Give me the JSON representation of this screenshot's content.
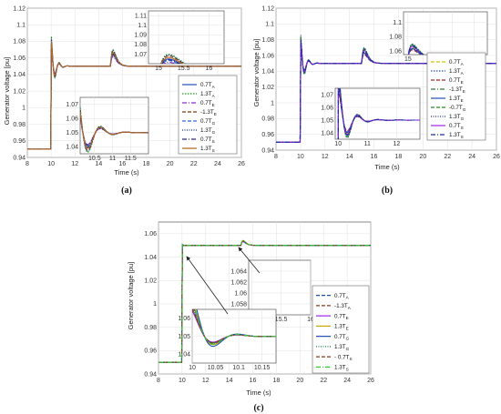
{
  "chart_data": [
    {
      "id": "a",
      "type": "line",
      "caption": "(a)",
      "xlabel": "Time (s)",
      "ylabel": "Generator voltage [pu]",
      "xlim": [
        8,
        26
      ],
      "ylim": [
        0.94,
        1.12
      ],
      "xticks": [
        8,
        10,
        12,
        14,
        16,
        18,
        20,
        22,
        24,
        26
      ],
      "yticks": [
        0.94,
        0.96,
        0.98,
        1.0,
        1.02,
        1.04,
        1.06,
        1.08,
        1.1,
        1.12
      ],
      "grid": true,
      "legend_placement": "right",
      "series": [
        {
          "name": "0.7T",
          "sub": "A",
          "color": "#1f4fb5",
          "dash": "",
          "amp": 0.01,
          "amp2": -0.002
        },
        {
          "name": "1.3T",
          "sub": "A",
          "color": "#1b9e1b",
          "dash": "1.5,1.5",
          "amp": 0.02,
          "amp2": 0.004
        },
        {
          "name": "0.7T",
          "sub": "E",
          "color": "#8a2be2",
          "dash": "5,2,1,2",
          "amp": 0.004,
          "amp2": -0.006
        },
        {
          "name": "-1.3T",
          "sub": "E",
          "color": "#7a3b12",
          "dash": "4,2",
          "amp": 0.016,
          "amp2": 0.002
        },
        {
          "name": "0.7T",
          "sub": "G",
          "color": "#2a6fd0",
          "dash": "4,2",
          "amp": 0.008,
          "amp2": -0.004
        },
        {
          "name": "1.3T",
          "sub": "G",
          "color": "#1a2e9a",
          "dash": "1,1.5",
          "amp": 0.018,
          "amp2": 0.003
        },
        {
          "name": "0.7T",
          "sub": "S",
          "color": "#2a2a7a",
          "dash": "5,2,1,2",
          "amp": 0.006,
          "amp2": -0.003
        },
        {
          "name": "1.3T",
          "sub": "S",
          "color": "#b5651d",
          "dash": "",
          "amp": 0.012,
          "amp2": 0.0
        }
      ],
      "insets": [
        {
          "xlim": [
            14.8,
            16.3
          ],
          "ylim": [
            1.06,
            1.115
          ],
          "xticks": [
            15,
            15.5,
            16
          ],
          "yticks": [
            1.07,
            1.08,
            1.09,
            1.1,
            1.11
          ],
          "window": "peak2"
        },
        {
          "xlim": [
            10.1,
            12.0
          ],
          "ylim": [
            1.035,
            1.075
          ],
          "xticks": [
            10.5,
            11,
            11.5
          ],
          "yticks": [
            1.04,
            1.05,
            1.06,
            1.07
          ],
          "window": "peak1"
        }
      ]
    },
    {
      "id": "b",
      "type": "line",
      "caption": "(b)",
      "xlabel": "Time (s)",
      "ylabel": "Generator voltage [pu]",
      "xlim": [
        8,
        26
      ],
      "ylim": [
        0.94,
        1.12
      ],
      "xticks": [
        8,
        10,
        12,
        14,
        16,
        18,
        20,
        22,
        24,
        26
      ],
      "yticks": [
        0.94,
        0.96,
        0.98,
        1.0,
        1.02,
        1.04,
        1.06,
        1.08,
        1.1,
        1.12
      ],
      "grid": true,
      "legend_placement": "right",
      "series": [
        {
          "name": "0.7T",
          "sub": "A",
          "color": "#d6c400",
          "dash": "4,2",
          "amp": 0.01,
          "amp2": -0.002
        },
        {
          "name": "1.3T",
          "sub": "A",
          "color": "#1f4fb5",
          "dash": "1.5,1.5",
          "amp": 0.02,
          "amp2": 0.004
        },
        {
          "name": "0.7T",
          "sub": "E",
          "color": "#b22222",
          "dash": "4,2",
          "amp": 0.004,
          "amp2": -0.006
        },
        {
          "name": "-1.3T",
          "sub": "E",
          "color": "#2e7d32",
          "dash": "5,2,1,2",
          "amp": 0.016,
          "amp2": 0.002
        },
        {
          "name": "1.3T",
          "sub": "E",
          "color": "#1f4fb5",
          "dash": "",
          "amp": 0.008,
          "amp2": -0.004
        },
        {
          "name": "-0.7T",
          "sub": "G",
          "color": "#228b22",
          "dash": "4,2",
          "amp": 0.018,
          "amp2": 0.003
        },
        {
          "name": "1.3T",
          "sub": "G",
          "color": "#1a2e9a",
          "dash": "1,1.5",
          "amp": 0.006,
          "amp2": -0.003
        },
        {
          "name": "0.7T",
          "sub": "S",
          "color": "#a020f0",
          "dash": "",
          "amp": 0.012,
          "amp2": 0.0
        },
        {
          "name": "1.3T",
          "sub": "S",
          "color": "#1a2e9a",
          "dash": "5,2,1,2",
          "amp": 0.014,
          "amp2": 0.001
        }
      ],
      "insets": [
        {
          "xlim": [
            14.8,
            18.6
          ],
          "ylim": [
            1.055,
            1.115
          ],
          "xticks": [
            15,
            16,
            17,
            18
          ],
          "yticks": [
            1.06,
            1.08,
            1.1
          ],
          "window": "peak2"
        },
        {
          "xlim": [
            9.9,
            12.8
          ],
          "ylim": [
            1.035,
            1.075
          ],
          "xticks": [
            10,
            11,
            12
          ],
          "yticks": [
            1.04,
            1.05,
            1.06,
            1.07
          ],
          "window": "peak1"
        }
      ]
    },
    {
      "id": "c",
      "type": "line",
      "caption": "(c)",
      "xlabel": "Time (s)",
      "ylabel": "Generator voltage [pu]",
      "xlim": [
        8,
        26
      ],
      "ylim": [
        0.94,
        1.07
      ],
      "xticks": [
        8,
        10,
        12,
        14,
        16,
        18,
        20,
        22,
        24,
        26
      ],
      "yticks": [
        0.94,
        0.96,
        0.98,
        1.0,
        1.02,
        1.04,
        1.06
      ],
      "grid": true,
      "legend_placement": "right",
      "series": [
        {
          "name": "0.7T",
          "sub": "A",
          "color": "#1f4fb5",
          "dash": "4,2",
          "amp": 0.004,
          "amp2": 0.0
        },
        {
          "name": "-1.3T",
          "sub": "A",
          "color": "#8b3a1a",
          "dash": "4,2",
          "amp": 0.006,
          "amp2": 0.0
        },
        {
          "name": "0.7T",
          "sub": "E",
          "color": "#a020f0",
          "dash": "",
          "amp": 0.002,
          "amp2": -0.0015
        },
        {
          "name": "1.3T",
          "sub": "E",
          "color": "#c9a400",
          "dash": "",
          "amp": 0.008,
          "amp2": 0.0015
        },
        {
          "name": "0.7T",
          "sub": "G",
          "color": "#1f4fb5",
          "dash": "",
          "amp": 0.012,
          "amp2": 0.0
        },
        {
          "name": "1.3T",
          "sub": "G",
          "color": "#1b7a3a",
          "dash": "1,1.5",
          "amp": 0.005,
          "amp2": 0.0005
        },
        {
          "name": "- 0.7T",
          "sub": "S",
          "color": "#8b3a1a",
          "dash": "4,2",
          "amp": 0.003,
          "amp2": -0.0005
        },
        {
          "name": "1.3T",
          "sub": "S",
          "color": "#33cc33",
          "dash": "5,2,1,2",
          "amp": 0.007,
          "amp2": 0.001
        }
      ],
      "insets": [
        {
          "xlim": [
            14.95,
            16.0
          ],
          "ylim": [
            1.056,
            1.066
          ],
          "xticks": [
            15,
            15.5,
            16
          ],
          "yticks": [
            1.058,
            1.06,
            1.062,
            1.064
          ],
          "window": "peak2"
        },
        {
          "xlim": [
            10.0,
            10.18
          ],
          "ylim": [
            1.035,
            1.065
          ],
          "xticks": [
            10,
            10.05,
            10.1,
            10.15
          ],
          "yticks": [
            1.04,
            1.05,
            1.06
          ],
          "window": "peak1"
        }
      ]
    }
  ]
}
